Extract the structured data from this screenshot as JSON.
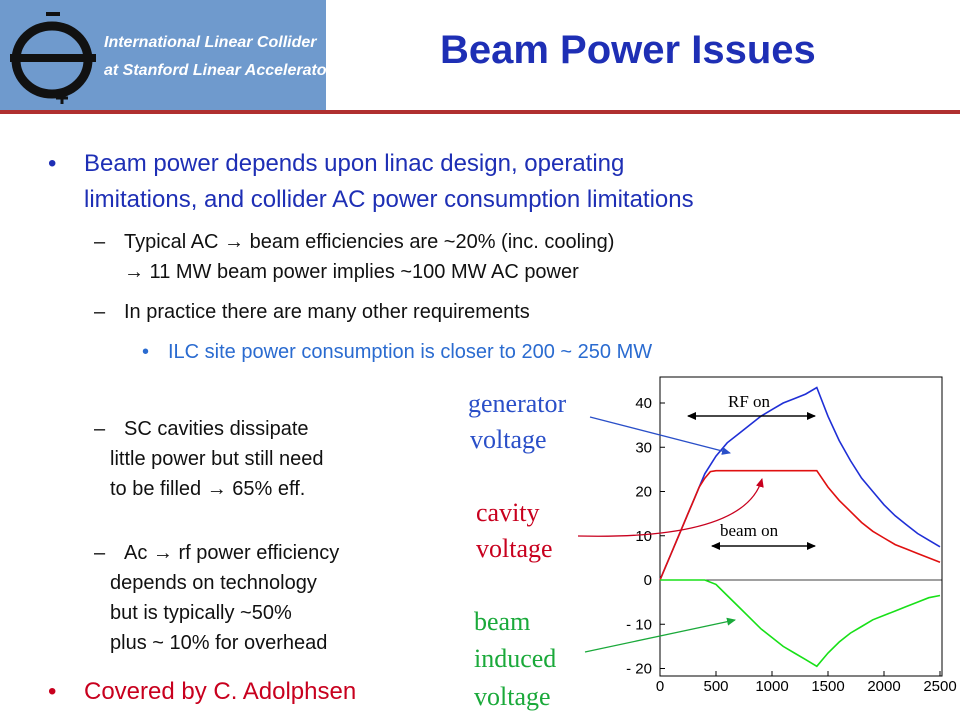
{
  "logo": {
    "line1": "International Linear Collider",
    "line2": "at Stanford Linear Accelerator Center",
    "symbol": "e-e+ logo",
    "bg_color": "#6f9acd"
  },
  "title": "Beam Power Issues",
  "bullets": {
    "b1": {
      "line1": "Beam power depends upon linac design, operating",
      "line2": "limitations, and collider AC power consumption limitations"
    },
    "s1": {
      "line1": "Typical AC → beam efficiencies are ~20% (inc. cooling)",
      "line2": "→ 11 MW beam power implies ~100 MW AC power"
    },
    "s2": "In practice there are many other requirements",
    "t1": "ILC site power consumption is closer to 200 ~ 250 MW",
    "s3": {
      "line1": "SC cavities dissipate",
      "line2": "little power but still need",
      "line3": "to be filled → 65% eff."
    },
    "s4": {
      "line1": "Ac → rf power efficiency",
      "line2": "depends on technology",
      "line3": "but is typically ~50%",
      "line4": "plus ~ 10% for overhead"
    },
    "b2": "Covered by C. Adolphsen",
    "bullet_glyph": "•",
    "dash_glyph": "–"
  },
  "labels": {
    "gen1": "generator",
    "gen2": "voltage",
    "cav1": "cavity",
    "cav2": "voltage",
    "beam1": "beam",
    "beam2": "induced",
    "beam3": "voltage",
    "rf_on": "RF on",
    "beam_on": "beam on"
  },
  "colors": {
    "title": "#1e2fb5",
    "generator": "#1f2fd6",
    "cavity": "#e01010",
    "beam": "#18e018",
    "label_generator": "#2a4fc8",
    "label_cavity": "#c8001e",
    "label_beam": "#1aa93a"
  },
  "chart_data": {
    "type": "line",
    "xlim": [
      0,
      2500
    ],
    "ylim": [
      -22,
      45
    ],
    "x_ticks": [
      "0",
      "500",
      "1000",
      "1500",
      "2000",
      "2500"
    ],
    "y_ticks": [
      "- 20",
      "- 10",
      "0",
      "10",
      "20",
      "30",
      "40"
    ],
    "series": [
      {
        "name": "generator voltage",
        "x": [
          0,
          50,
          100,
          150,
          200,
          250,
          300,
          350,
          400,
          450,
          500,
          600,
          700,
          800,
          900,
          1000,
          1100,
          1200,
          1300,
          1400,
          1500,
          1600,
          1700,
          1800,
          1900,
          2000,
          2100,
          2200,
          2300,
          2400,
          2500
        ],
        "y": [
          0,
          3,
          6,
          9,
          12,
          15,
          18,
          21,
          24,
          26,
          28,
          31,
          33,
          35,
          37,
          38.5,
          40,
          41,
          42,
          43.5,
          37,
          31.5,
          27,
          23,
          20,
          17,
          14.5,
          12.5,
          10.5,
          9,
          7.5
        ]
      },
      {
        "name": "cavity voltage",
        "x": [
          0,
          50,
          100,
          150,
          200,
          250,
          300,
          350,
          400,
          450,
          500,
          600,
          800,
          1000,
          1200,
          1400,
          1500,
          1600,
          1700,
          1800,
          1900,
          2000,
          2100,
          2200,
          2300,
          2400,
          2500
        ],
        "y": [
          0,
          3,
          6,
          9,
          12,
          15,
          18,
          21,
          23,
          24.5,
          24.7,
          24.7,
          24.7,
          24.7,
          24.7,
          24.7,
          21,
          18,
          15.5,
          13,
          11,
          9.5,
          8,
          7,
          6,
          5,
          4
        ]
      },
      {
        "name": "beam induced voltage",
        "x": [
          0,
          400,
          500,
          600,
          700,
          800,
          900,
          1000,
          1100,
          1200,
          1300,
          1400,
          1500,
          1600,
          1700,
          1800,
          1900,
          2000,
          2100,
          2200,
          2300,
          2400,
          2500
        ],
        "y": [
          0,
          0,
          -1,
          -3.5,
          -6,
          -8.5,
          -11,
          -13,
          -15,
          -16.5,
          -18,
          -19.5,
          -16.5,
          -14,
          -12,
          -10.5,
          -9,
          -8,
          -7,
          -6,
          -5,
          -4,
          -3.5
        ]
      }
    ]
  }
}
